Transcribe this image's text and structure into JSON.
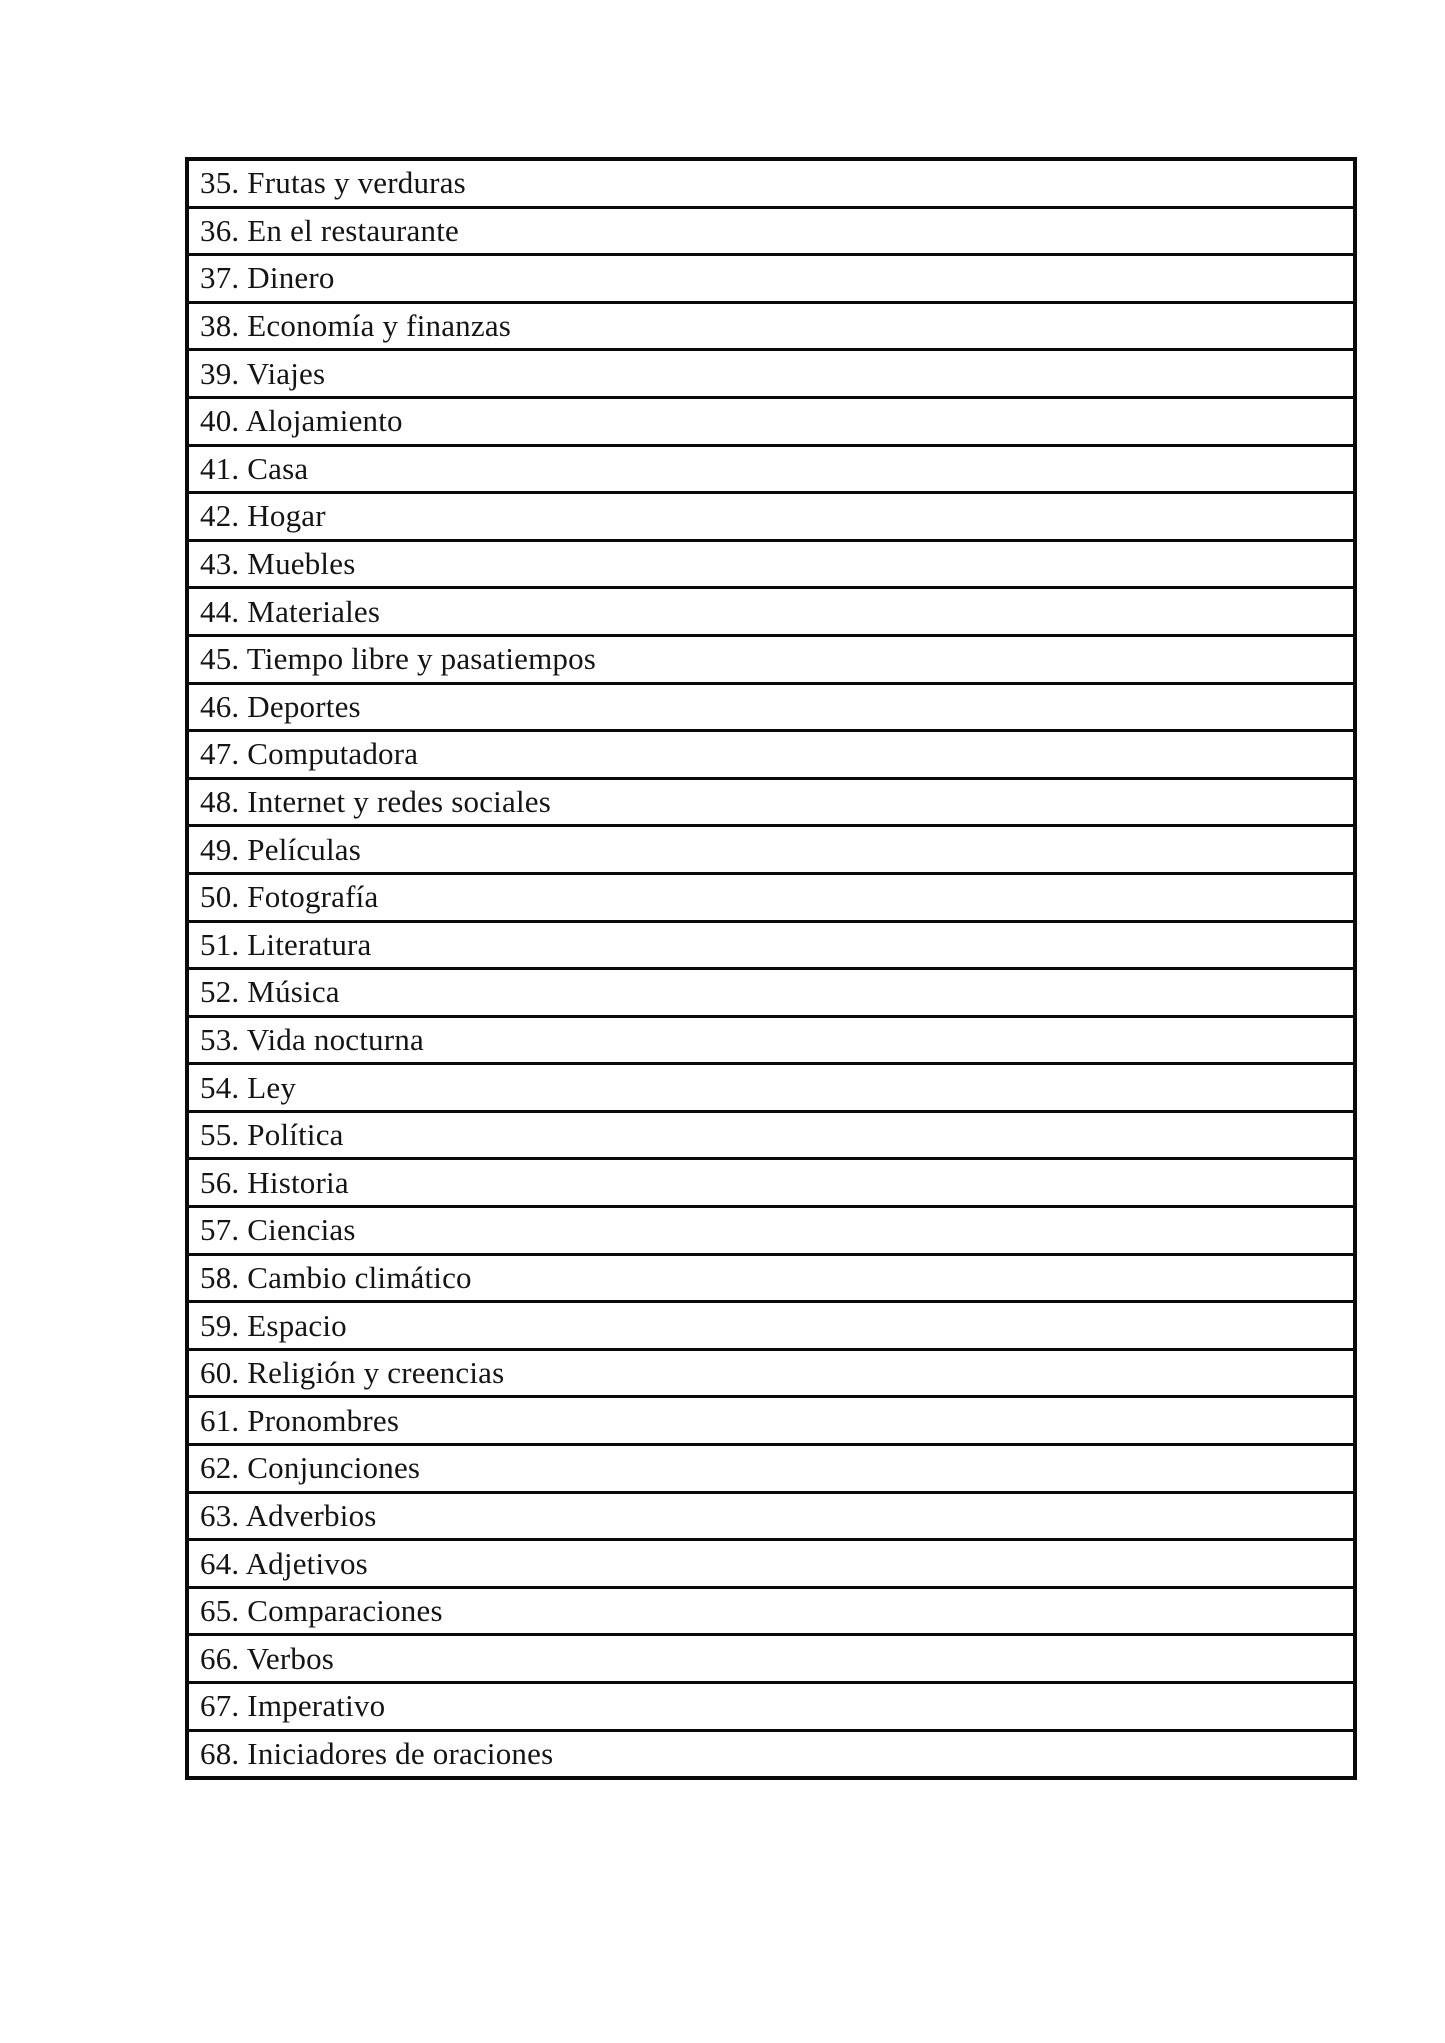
{
  "document": {
    "type": "table-of-contents-page",
    "language": "Spanish",
    "background_color": "#ffffff",
    "border_color": "#0a0a0a",
    "text_color": "#141414"
  },
  "toc": {
    "rows": [
      "35. Frutas y verduras",
      "36. En el restaurante",
      "37. Dinero",
      "38. Economía y finanzas",
      "39. Viajes",
      "40. Alojamiento",
      "41. Casa",
      "42. Hogar",
      "43. Muebles",
      "44. Materiales",
      "45. Tiempo libre y pasatiempos",
      "46. Deportes",
      "47. Computadora",
      "48. Internet y redes sociales",
      "49. Películas",
      "50. Fotografía",
      "51. Literatura",
      "52. Música",
      "53. Vida nocturna",
      "54. Ley",
      "55. Política",
      "56. Historia",
      "57. Ciencias",
      "58. Cambio climático",
      "59. Espacio",
      "60. Religión y creencias",
      "61. Pronombres",
      "62. Conjunciones",
      "63. Adverbios",
      "64. Adjetivos",
      "65. Comparaciones",
      "66. Verbos",
      "67. Imperativo",
      "68. Iniciadores de oraciones"
    ]
  }
}
